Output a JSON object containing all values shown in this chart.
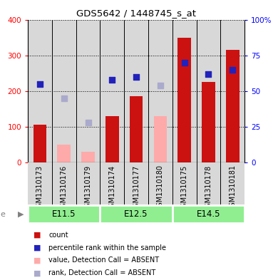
{
  "title": "GDS5642 / 1448745_s_at",
  "samples": [
    "GSM1310173",
    "GSM1310176",
    "GSM1310179",
    "GSM1310174",
    "GSM1310177",
    "GSM1310180",
    "GSM1310175",
    "GSM1310178",
    "GSM1310181"
  ],
  "groups": [
    {
      "label": "E11.5",
      "start": 0,
      "end": 3
    },
    {
      "label": "E12.5",
      "start": 3,
      "end": 6
    },
    {
      "label": "E14.5",
      "start": 6,
      "end": 9
    }
  ],
  "count_values": [
    105,
    0,
    0,
    130,
    185,
    0,
    350,
    225,
    315
  ],
  "absent_value": [
    0,
    50,
    30,
    0,
    0,
    130,
    0,
    0,
    0
  ],
  "percentile_rank": [
    55,
    0,
    0,
    58,
    60,
    0,
    70,
    62,
    65
  ],
  "absent_rank": [
    0,
    45,
    28,
    0,
    0,
    54,
    0,
    0,
    0
  ],
  "is_absent": [
    false,
    true,
    true,
    false,
    false,
    true,
    false,
    false,
    false
  ],
  "ylim_left": [
    0,
    400
  ],
  "ylim_right": [
    0,
    100
  ],
  "yticks_left": [
    0,
    100,
    200,
    300,
    400
  ],
  "yticks_right": [
    0,
    25,
    50,
    75,
    100
  ],
  "yticklabels_right": [
    "0",
    "25",
    "50",
    "75",
    "100%"
  ],
  "bar_width": 0.55,
  "bar_color_count": "#cc1111",
  "bar_color_absent": "#ffaaaa",
  "dot_color_present": "#2222bb",
  "dot_color_absent": "#aaaacc",
  "group_green": "#90ee90",
  "sample_bg": "#d8d8d8",
  "legend_items": [
    {
      "color": "#cc1111",
      "label": "count"
    },
    {
      "color": "#2222bb",
      "label": "percentile rank within the sample"
    },
    {
      "color": "#ffaaaa",
      "label": "value, Detection Call = ABSENT"
    },
    {
      "color": "#aaaacc",
      "label": "rank, Detection Call = ABSENT"
    }
  ]
}
